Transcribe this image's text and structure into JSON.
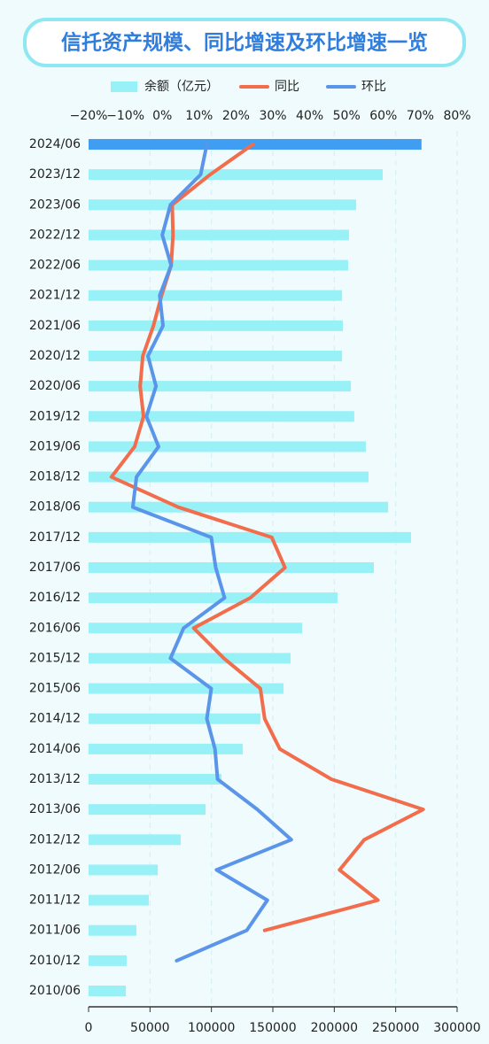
{
  "chart_data": {
    "type": "bar-line",
    "title": "信托资产规模、同比增速及环比增速一览",
    "categories": [
      "2024/06",
      "2023/12",
      "2023/06",
      "2022/12",
      "2022/06",
      "2021/12",
      "2021/06",
      "2020/12",
      "2020/06",
      "2019/12",
      "2019/06",
      "2018/12",
      "2018/06",
      "2017/12",
      "2017/06",
      "2016/12",
      "2016/06",
      "2015/12",
      "2015/06",
      "2014/12",
      "2014/06",
      "2013/12",
      "2013/06",
      "2012/12",
      "2012/06",
      "2011/12",
      "2011/06",
      "2010/12",
      "2010/06"
    ],
    "series": [
      {
        "name": "余额（亿元）",
        "type": "bar",
        "axis": "x",
        "color": "#98f1f7",
        "colors": [
          "#3f9df2",
          "#98f1f7",
          "#98f1f7",
          "#98f1f7",
          "#98f1f7",
          "#98f1f7",
          "#98f1f7",
          "#98f1f7",
          "#98f1f7",
          "#98f1f7",
          "#98f1f7",
          "#98f1f7",
          "#98f1f7",
          "#98f1f7",
          "#98f1f7",
          "#98f1f7",
          "#98f1f7",
          "#98f1f7",
          "#98f1f7",
          "#98f1f7",
          "#98f1f7",
          "#98f1f7",
          "#98f1f7",
          "#98f1f7",
          "#98f1f7",
          "#98f1f7",
          "#98f1f7",
          "#98f1f7",
          "#98f1f7"
        ],
        "values": [
          271000,
          239400,
          217800,
          212000,
          211300,
          206300,
          207000,
          206300,
          213500,
          216300,
          225700,
          227900,
          243800,
          262500,
          232200,
          202600,
          173800,
          164400,
          158700,
          139900,
          125500,
          108200,
          95200,
          75000,
          56300,
          49000,
          38900,
          31000,
          30300
        ]
      },
      {
        "name": "同比",
        "type": "line",
        "axis": "x2",
        "color": "#f26d4b",
        "values": [
          24.6,
          13.0,
          2.7,
          2.9,
          2.4,
          -0.2,
          -2.4,
          -5.3,
          -6.0,
          -5.1,
          -7.5,
          -13.8,
          4.3,
          29.7,
          33.3,
          23.9,
          8.5,
          16.7,
          26.6,
          27.8,
          31.9,
          45.9,
          70.8,
          54.8,
          48.1,
          58.5,
          27.8,
          null,
          null
        ]
      },
      {
        "name": "环比",
        "type": "line",
        "axis": "x2",
        "color": "#5b95ea",
        "values": [
          12.1,
          10.4,
          2.2,
          0,
          2.4,
          -0.7,
          0.2,
          -3.9,
          -1.7,
          -4.3,
          -1.0,
          -7.0,
          -8.0,
          13.3,
          14.5,
          16.9,
          5.8,
          2.2,
          13.3,
          12.1,
          14.3,
          15.0,
          25.8,
          35.0,
          14.7,
          28.5,
          22.9,
          3.9,
          null
        ]
      }
    ],
    "xlim": [
      0,
      300000
    ],
    "xticks": [
      0,
      50000,
      100000,
      150000,
      200000,
      250000,
      300000
    ],
    "x2lim": [
      -20,
      80
    ],
    "x2ticks": [
      {
        "value": -20,
        "label": "−20%"
      },
      {
        "value": -10,
        "label": "−10%"
      },
      {
        "value": 0,
        "label": "0%"
      },
      {
        "value": 10,
        "label": "10%"
      },
      {
        "value": 20,
        "label": "20%"
      },
      {
        "value": 30,
        "label": "30%"
      },
      {
        "value": 40,
        "label": "40%"
      },
      {
        "value": 50,
        "label": "50%"
      },
      {
        "value": 60,
        "label": "60%"
      },
      {
        "value": 70,
        "label": "70%"
      },
      {
        "value": 80,
        "label": "80%"
      }
    ],
    "grid": true,
    "legend": "top"
  }
}
